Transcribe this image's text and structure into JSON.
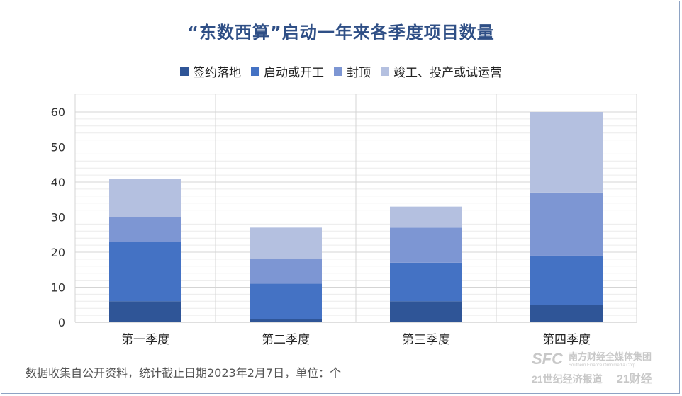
{
  "chart_data": {
    "type": "bar",
    "stacked": true,
    "title": "“东数西算”启动一年来各季度项目数量",
    "categories": [
      "第一季度",
      "第二季度",
      "第三季度",
      "第四季度"
    ],
    "series": [
      {
        "name": "签约落地",
        "values": [
          6,
          1,
          6,
          5
        ],
        "color": "#2f5597"
      },
      {
        "name": "启动或开工",
        "values": [
          17,
          10,
          11,
          14
        ],
        "color": "#4472c4"
      },
      {
        "name": "封顶",
        "values": [
          7,
          7,
          10,
          18
        ],
        "color": "#7d96d3"
      },
      {
        "name": "竣工、投产或试运营",
        "values": [
          11,
          9,
          6,
          23
        ],
        "color": "#b4c0e0"
      }
    ],
    "ylim": [
      0,
      60
    ],
    "yticks": [
      0,
      10,
      20,
      30,
      40,
      50,
      60
    ],
    "grid": true,
    "legend_position": "top"
  },
  "footnote": "数据收集自公开资料，统计截止日期2023年2月7日，单位：个",
  "brand": {
    "line1": "SFC 南方财经全媒体集团",
    "line2": "21世纪经济报道 21财经"
  }
}
